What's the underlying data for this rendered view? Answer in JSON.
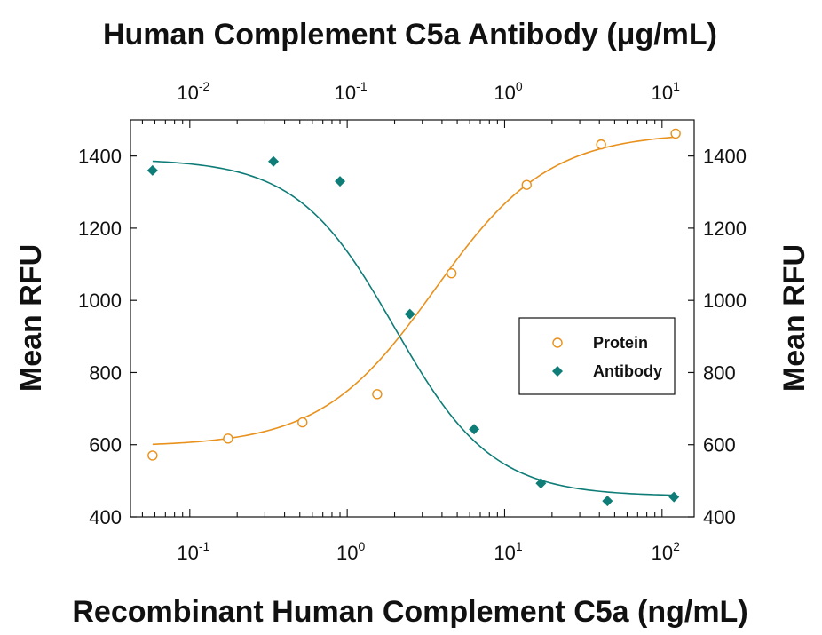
{
  "chart_data": {
    "type": "scatter",
    "title": "",
    "top_xlabel": "Human Complement C5a Antibody (μg/mL)",
    "xlabel": "Recombinant Human Complement C5a (ng/mL)",
    "ylabel_left": "Mean RFU",
    "ylabel_right": "Mean RFU",
    "x_scale": "log",
    "x_ticks_bottom": [
      {
        "base": "10",
        "exp": "-1",
        "value": 0.1
      },
      {
        "base": "10",
        "exp": "0",
        "value": 1
      },
      {
        "base": "10",
        "exp": "1",
        "value": 10
      },
      {
        "base": "10",
        "exp": "2",
        "value": 100
      }
    ],
    "x_ticks_top": [
      {
        "base": "10",
        "exp": "-2",
        "value": 0.01
      },
      {
        "base": "10",
        "exp": "-1",
        "value": 0.1
      },
      {
        "base": "10",
        "exp": "0",
        "value": 1
      },
      {
        "base": "10",
        "exp": "1",
        "value": 10
      }
    ],
    "xlim_bottom": [
      0.042,
      160
    ],
    "xlim_top": [
      0.0042,
      16
    ],
    "ylim": [
      400,
      1500
    ],
    "y_ticks": [
      "400",
      "600",
      "800",
      "1000",
      "1200",
      "1400"
    ],
    "legend_position": "right-center",
    "series": [
      {
        "name": "Protein",
        "axis": "bottom",
        "marker": "open-circle",
        "color": "#E8911C",
        "points": [
          {
            "x": 0.058,
            "y": 570
          },
          {
            "x": 0.175,
            "y": 617
          },
          {
            "x": 0.52,
            "y": 662
          },
          {
            "x": 1.55,
            "y": 740
          },
          {
            "x": 4.6,
            "y": 1075
          },
          {
            "x": 13.8,
            "y": 1320
          },
          {
            "x": 41,
            "y": 1432
          },
          {
            "x": 122,
            "y": 1462
          }
        ],
        "fit": {
          "bottom": 595,
          "top": 1465,
          "ec50": 3.6,
          "hill": 1.2
        }
      },
      {
        "name": "Antibody",
        "axis": "top",
        "marker": "filled-diamond",
        "color": "#0E7C77",
        "points": [
          {
            "x": 0.0058,
            "y": 1360
          },
          {
            "x": 0.034,
            "y": 1385
          },
          {
            "x": 0.09,
            "y": 1330
          },
          {
            "x": 0.25,
            "y": 962
          },
          {
            "x": 0.64,
            "y": 643
          },
          {
            "x": 1.7,
            "y": 493
          },
          {
            "x": 4.5,
            "y": 444
          },
          {
            "x": 11.9,
            "y": 455
          }
        ],
        "fit": {
          "bottom": 457,
          "top": 1392,
          "ec50": 0.2,
          "hill": 1.4
        }
      }
    ]
  }
}
